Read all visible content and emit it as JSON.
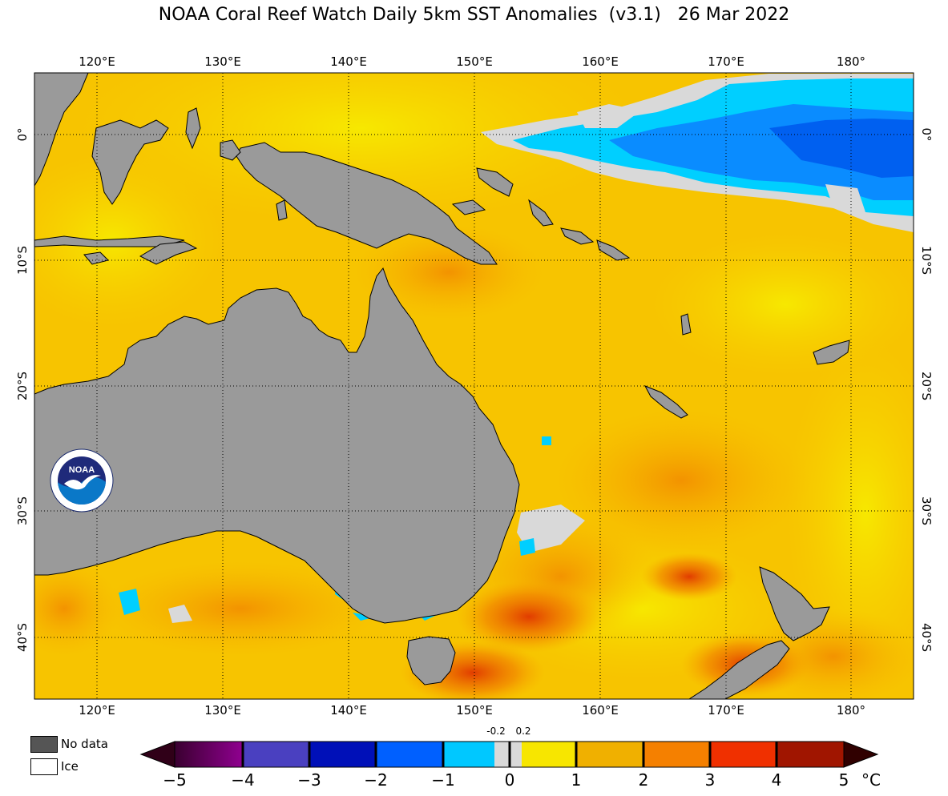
{
  "title": "NOAA Coral Reef Watch Daily 5km SST Anomalies  (v3.1)   26 Mar 2022",
  "lon_labels": [
    "120°E",
    "130°E",
    "140°E",
    "150°E",
    "160°E",
    "170°E",
    "180°"
  ],
  "lat_labels": [
    "0°",
    "10°S",
    "20°S",
    "30°S",
    "40°S"
  ],
  "legend": {
    "nodata": "No data",
    "ice": "Ice"
  },
  "colorbar": {
    "ticks": [
      "−5",
      "−4",
      "−3",
      "−2",
      "−1",
      "0",
      "1",
      "2",
      "3",
      "4",
      "5"
    ],
    "small_labels": [
      "-0.2",
      "0.2"
    ],
    "unit": "°C"
  },
  "logo": {
    "text": "NOAA",
    "ring_text": "NATIONAL OCEANIC AND ATMOSPHERIC ADMINISTRATION · U.S. DEPARTMENT OF COMMERCE"
  },
  "colors": {
    "land": "#9a9a9a",
    "nodata": "#555555",
    "ice": "#ffffff",
    "nodata_ocean": "#d9d9d9",
    "anom_pos_1": "#f7e700",
    "anom_pos_2": "#f7b500",
    "anom_pos_3": "#f78a00",
    "anom_pos_4": "#e84a00",
    "anom_neg_1": "#00d5ff",
    "anom_neg_2": "#0060ff"
  }
}
